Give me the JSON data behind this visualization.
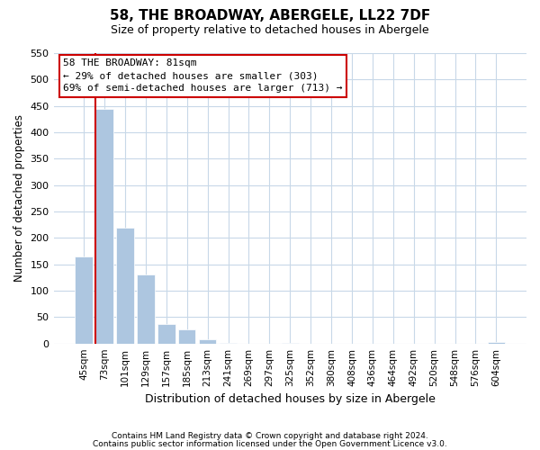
{
  "title": "58, THE BROADWAY, ABERGELE, LL22 7DF",
  "subtitle": "Size of property relative to detached houses in Abergele",
  "xlabel": "Distribution of detached houses by size in Abergele",
  "ylabel": "Number of detached properties",
  "bar_labels": [
    "45sqm",
    "73sqm",
    "101sqm",
    "129sqm",
    "157sqm",
    "185sqm",
    "213sqm",
    "241sqm",
    "269sqm",
    "297sqm",
    "325sqm",
    "352sqm",
    "380sqm",
    "408sqm",
    "436sqm",
    "464sqm",
    "492sqm",
    "520sqm",
    "548sqm",
    "576sqm",
    "604sqm"
  ],
  "bar_values": [
    165,
    445,
    220,
    130,
    37,
    26,
    8,
    1,
    0,
    0,
    2,
    0,
    0,
    0,
    0,
    0,
    0,
    0,
    0,
    0,
    3
  ],
  "bar_color": "#adc6e0",
  "marker_line_color": "#cc0000",
  "property_size": "81sqm",
  "property_name": "58 THE BROADWAY",
  "pct_smaller": 29,
  "n_smaller": 303,
  "pct_larger_semi": 69,
  "n_larger_semi": 713,
  "ylim": [
    0,
    550
  ],
  "yticks": [
    0,
    50,
    100,
    150,
    200,
    250,
    300,
    350,
    400,
    450,
    500,
    550
  ],
  "footnote1": "Contains HM Land Registry data © Crown copyright and database right 2024.",
  "footnote2": "Contains public sector information licensed under the Open Government Licence v3.0.",
  "annotation_box_color": "#ffffff",
  "annotation_box_edge_color": "#cc0000",
  "background_color": "#ffffff",
  "grid_color": "#c8d8e8"
}
